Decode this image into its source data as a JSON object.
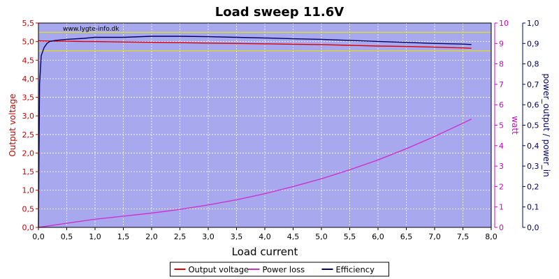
{
  "chart_data": {
    "type": "line",
    "title": "Load sweep 11.6V",
    "watermark": "www.lygte-info.dk",
    "xlabel": "Load current",
    "xlim": [
      0,
      8
    ],
    "x_ticks": [
      "0,0",
      "0,5",
      "1,0",
      "1,5",
      "2,0",
      "2,5",
      "3,0",
      "3,5",
      "4,0",
      "4,5",
      "5,0",
      "5,5",
      "6,0",
      "6,5",
      "7,0",
      "7,5",
      "8,0"
    ],
    "axes": {
      "left": {
        "label": "Output voltage",
        "color": "#cc0000",
        "lim": [
          0,
          5.5
        ],
        "ticks": [
          "0,0",
          "0,5",
          "1,0",
          "1,5",
          "2,0",
          "2,5",
          "3,0",
          "3,5",
          "4,0",
          "4,5",
          "5,0",
          "5,5"
        ]
      },
      "right1": {
        "label": "watt",
        "color": "#cc00cc",
        "lim": [
          0,
          10
        ],
        "ticks": [
          "0",
          "1",
          "2",
          "3",
          "4",
          "5",
          "6",
          "7",
          "8",
          "9",
          "10"
        ]
      },
      "right2": {
        "label": "power_output / power_in",
        "color": "#000066",
        "lim": [
          0,
          1.0
        ],
        "ticks": [
          "0,0",
          "0,1",
          "0,2",
          "0,3",
          "0,4",
          "0,5",
          "0,6",
          "0,7",
          "0,8",
          "0,9",
          "1,0"
        ]
      }
    },
    "reference_lines": [
      {
        "axis": "left",
        "value": 5.25,
        "color": "#e6e600"
      },
      {
        "axis": "left",
        "value": 4.75,
        "color": "#e6e600"
      }
    ],
    "series": [
      {
        "name": "Output voltage",
        "axis": "left",
        "color": "#dd0000",
        "x": [
          0.0,
          0.3,
          0.5,
          0.8,
          1.0,
          1.5,
          2.0,
          2.5,
          3.0,
          3.5,
          4.0,
          4.5,
          5.0,
          5.5,
          6.0,
          6.5,
          7.0,
          7.5,
          7.65
        ],
        "y": [
          5.02,
          5.01,
          5.01,
          5.0,
          5.0,
          4.99,
          4.98,
          4.97,
          4.96,
          4.95,
          4.94,
          4.93,
          4.92,
          4.9,
          4.88,
          4.87,
          4.85,
          4.83,
          4.82
        ]
      },
      {
        "name": "Power loss",
        "axis": "right1",
        "color": "#cc33cc",
        "x": [
          0.0,
          0.5,
          1.0,
          1.5,
          2.0,
          2.5,
          3.0,
          3.5,
          4.0,
          4.5,
          5.0,
          5.5,
          6.0,
          6.5,
          7.0,
          7.5,
          7.65
        ],
        "y": [
          0.0,
          0.2,
          0.4,
          0.55,
          0.7,
          0.88,
          1.1,
          1.35,
          1.65,
          2.0,
          2.38,
          2.82,
          3.3,
          3.85,
          4.45,
          5.1,
          5.3
        ]
      },
      {
        "name": "Efficiency",
        "axis": "right2",
        "color": "#000066",
        "x": [
          0.0,
          0.02,
          0.05,
          0.1,
          0.15,
          0.2,
          0.3,
          0.5,
          0.8,
          1.0,
          1.5,
          2.0,
          2.5,
          3.0,
          3.5,
          4.0,
          4.5,
          5.0,
          5.5,
          6.0,
          6.5,
          7.0,
          7.5,
          7.65
        ],
        "y": [
          0.0,
          0.7,
          0.84,
          0.88,
          0.9,
          0.91,
          0.915,
          0.92,
          0.925,
          0.93,
          0.93,
          0.935,
          0.935,
          0.933,
          0.93,
          0.927,
          0.923,
          0.92,
          0.915,
          0.91,
          0.905,
          0.9,
          0.897,
          0.895
        ]
      }
    ],
    "legend": {
      "position": "bottom"
    },
    "grid": true,
    "colors": {
      "plot_bg": "#a8a8ee",
      "grid": "#ffffff"
    }
  }
}
